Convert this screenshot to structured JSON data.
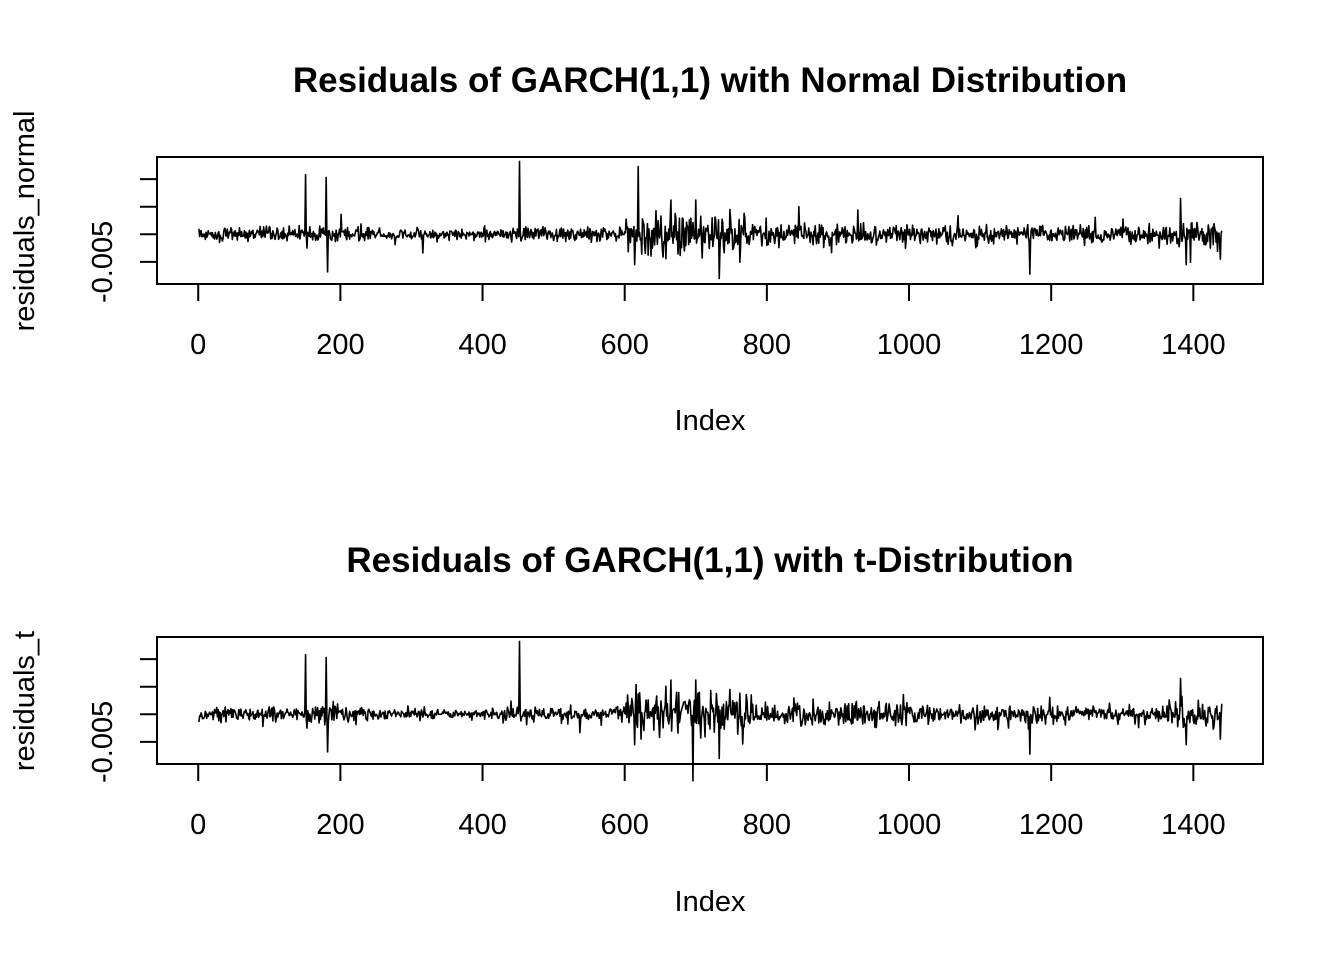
{
  "chart_data": [
    {
      "type": "line",
      "title": "Residuals of GARCH(1,1) with Normal Distribution",
      "xlabel": "Index",
      "ylabel": "residuals_normal",
      "xlim": [
        -58,
        1498
      ],
      "ylim": [
        -0.009,
        0.014
      ],
      "x_ticks": [
        0,
        200,
        400,
        600,
        800,
        1000,
        1200,
        1400
      ],
      "x_tick_labels": [
        "0",
        "200",
        "400",
        "600",
        "800",
        "1000",
        "1200",
        "1400"
      ],
      "y_ticks": [
        -0.005,
        0,
        0.005,
        0.01
      ],
      "y_tick_labels": [
        "-0.005",
        "",
        "",
        ""
      ],
      "n": 1440,
      "noise_segments": [
        {
          "x_end": 150,
          "amp": 0.0011
        },
        {
          "x_end": 240,
          "amp": 0.0014
        },
        {
          "x_end": 440,
          "amp": 0.0008
        },
        {
          "x_end": 600,
          "amp": 0.0012
        },
        {
          "x_end": 780,
          "amp": 0.0032
        },
        {
          "x_end": 1000,
          "amp": 0.0019
        },
        {
          "x_end": 1200,
          "amp": 0.0014
        },
        {
          "x_end": 1360,
          "amp": 0.0013
        },
        {
          "x_end": 1440,
          "amp": 0.0021
        }
      ],
      "spikes": [
        {
          "x": 151,
          "y": 0.0108
        },
        {
          "x": 153,
          "y": -0.0025
        },
        {
          "x": 180,
          "y": 0.0103
        },
        {
          "x": 182,
          "y": -0.0068
        },
        {
          "x": 452,
          "y": 0.0132
        },
        {
          "x": 454,
          "y": -0.0012
        },
        {
          "x": 614,
          "y": -0.0055
        },
        {
          "x": 665,
          "y": 0.0062
        },
        {
          "x": 700,
          "y": 0.0062
        },
        {
          "x": 733,
          "y": -0.008
        },
        {
          "x": 748,
          "y": 0.0045
        },
        {
          "x": 1170,
          "y": -0.0072
        },
        {
          "x": 1382,
          "y": 0.0065
        },
        {
          "x": 1390,
          "y": -0.0055
        },
        {
          "x": 1438,
          "y": -0.0045
        }
      ]
    },
    {
      "type": "line",
      "title": "Residuals of GARCH(1,1) with t-Distribution",
      "xlabel": "Index",
      "ylabel": "residuals_t",
      "xlim": [
        -58,
        1498
      ],
      "ylim": [
        -0.009,
        0.014
      ],
      "x_ticks": [
        0,
        200,
        400,
        600,
        800,
        1000,
        1200,
        1400
      ],
      "x_tick_labels": [
        "0",
        "200",
        "400",
        "600",
        "800",
        "1000",
        "1200",
        "1400"
      ],
      "y_ticks": [
        -0.005,
        0,
        0.005,
        0.01
      ],
      "y_tick_labels": [
        "-0.005",
        "",
        "",
        ""
      ],
      "n": 1440,
      "noise_segments": [
        {
          "x_end": 150,
          "amp": 0.0011
        },
        {
          "x_end": 240,
          "amp": 0.0014
        },
        {
          "x_end": 440,
          "amp": 0.0008
        },
        {
          "x_end": 600,
          "amp": 0.0012
        },
        {
          "x_end": 780,
          "amp": 0.0032
        },
        {
          "x_end": 1000,
          "amp": 0.0019
        },
        {
          "x_end": 1200,
          "amp": 0.0014
        },
        {
          "x_end": 1360,
          "amp": 0.0013
        },
        {
          "x_end": 1440,
          "amp": 0.0021
        }
      ],
      "spikes": [
        {
          "x": 151,
          "y": 0.0108
        },
        {
          "x": 153,
          "y": -0.0025
        },
        {
          "x": 180,
          "y": 0.0103
        },
        {
          "x": 182,
          "y": -0.0068
        },
        {
          "x": 452,
          "y": 0.0132
        },
        {
          "x": 454,
          "y": -0.0012
        },
        {
          "x": 614,
          "y": -0.0055
        },
        {
          "x": 665,
          "y": 0.0062
        },
        {
          "x": 700,
          "y": 0.0062
        },
        {
          "x": 733,
          "y": -0.008
        },
        {
          "x": 748,
          "y": 0.0045
        },
        {
          "x": 1170,
          "y": -0.0072
        },
        {
          "x": 1382,
          "y": 0.0065
        },
        {
          "x": 1390,
          "y": -0.0055
        },
        {
          "x": 1438,
          "y": -0.0045
        }
      ]
    }
  ]
}
